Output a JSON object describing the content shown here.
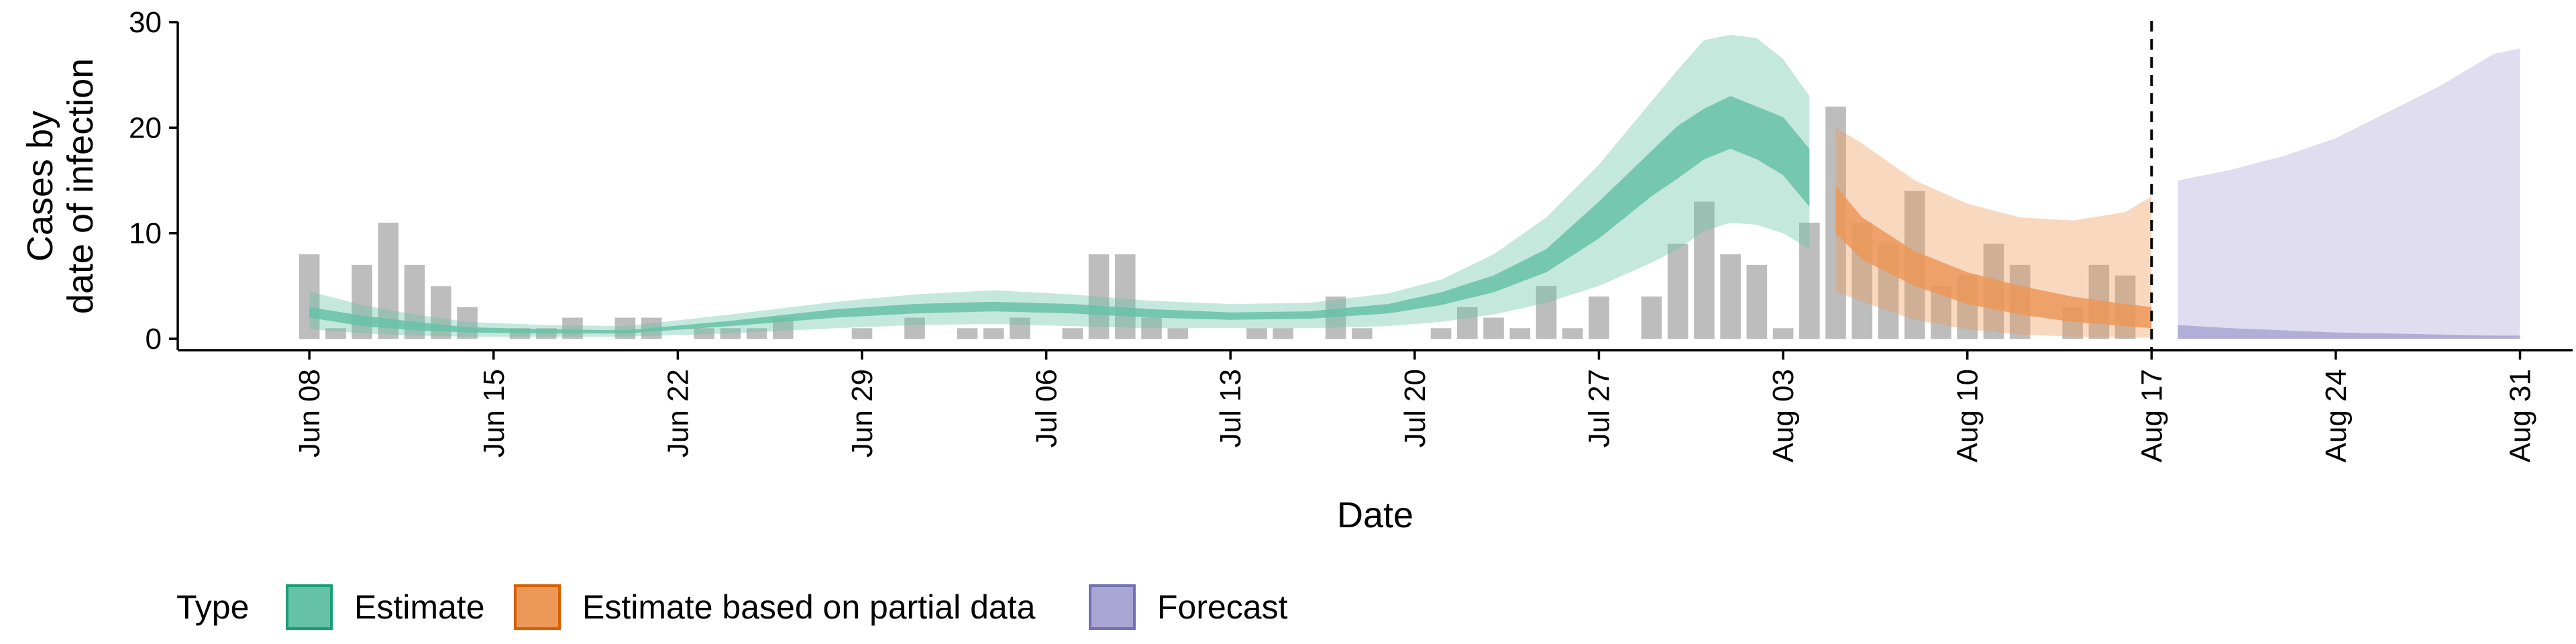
{
  "chart_data": {
    "type": "area",
    "xlabel": "Date",
    "ylabel": [
      "Cases by",
      "date of infection"
    ],
    "ylim": [
      0,
      30
    ],
    "y_ticks": [
      0,
      10,
      20,
      30
    ],
    "x_range": [
      "2020-06-03",
      "2020-09-02"
    ],
    "x_ticks": [
      "Jun 08",
      "Jun 15",
      "Jun 22",
      "Jun 29",
      "Jul 06",
      "Jul 13",
      "Jul 20",
      "Jul 27",
      "Aug 03",
      "Aug 10",
      "Aug 17",
      "Aug 24",
      "Aug 31"
    ],
    "x_tick_dates": [
      "2020-06-08",
      "2020-06-15",
      "2020-06-22",
      "2020-06-29",
      "2020-07-06",
      "2020-07-13",
      "2020-07-20",
      "2020-07-27",
      "2020-08-03",
      "2020-08-10",
      "2020-08-17",
      "2020-08-24",
      "2020-08-31"
    ],
    "forecast_start_line": "2020-08-17",
    "grid": false,
    "legend": {
      "title": "Type",
      "position": "bottom",
      "items": [
        {
          "label": "Estimate",
          "fill": "#66c2a5",
          "stroke": "#1b9e77"
        },
        {
          "label": "Estimate based on partial data",
          "fill": "#ec9858",
          "stroke": "#d95f02"
        },
        {
          "label": "Forecast",
          "fill": "#aaa6d4",
          "stroke": "#7570b3"
        }
      ]
    },
    "bar_color": "#bdbdbd",
    "reported_cases": {
      "dates": [
        "2020-06-08",
        "2020-06-09",
        "2020-06-10",
        "2020-06-11",
        "2020-06-12",
        "2020-06-13",
        "2020-06-14",
        "2020-06-15",
        "2020-06-16",
        "2020-06-17",
        "2020-06-18",
        "2020-06-19",
        "2020-06-20",
        "2020-06-21",
        "2020-06-22",
        "2020-06-23",
        "2020-06-24",
        "2020-06-25",
        "2020-06-26",
        "2020-06-27",
        "2020-06-28",
        "2020-06-29",
        "2020-06-30",
        "2020-07-01",
        "2020-07-02",
        "2020-07-03",
        "2020-07-04",
        "2020-07-05",
        "2020-07-06",
        "2020-07-07",
        "2020-07-08",
        "2020-07-09",
        "2020-07-10",
        "2020-07-11",
        "2020-07-12",
        "2020-07-13",
        "2020-07-14",
        "2020-07-15",
        "2020-07-16",
        "2020-07-17",
        "2020-07-18",
        "2020-07-19",
        "2020-07-20",
        "2020-07-21",
        "2020-07-22",
        "2020-07-23",
        "2020-07-24",
        "2020-07-25",
        "2020-07-26",
        "2020-07-27",
        "2020-07-28",
        "2020-07-29",
        "2020-07-30",
        "2020-07-31",
        "2020-08-01",
        "2020-08-02",
        "2020-08-03",
        "2020-08-04",
        "2020-08-05",
        "2020-08-06",
        "2020-08-07",
        "2020-08-08",
        "2020-08-09",
        "2020-08-10",
        "2020-08-11",
        "2020-08-12",
        "2020-08-13",
        "2020-08-14",
        "2020-08-15",
        "2020-08-16",
        "2020-08-17"
      ],
      "values": [
        8,
        1,
        7,
        11,
        7,
        5,
        3,
        0,
        1,
        1,
        2,
        0,
        2,
        2,
        0,
        1,
        1,
        1,
        2,
        0,
        0,
        1,
        0,
        2,
        0,
        1,
        1,
        2,
        0,
        1,
        8,
        8,
        2,
        1,
        0,
        0,
        1,
        1,
        0,
        4,
        1,
        0,
        0,
        1,
        3,
        2,
        1,
        5,
        1,
        4,
        0,
        4,
        9,
        13,
        8,
        7,
        1,
        11,
        22,
        11,
        9,
        14,
        5,
        6,
        9,
        7,
        0,
        3,
        7,
        6,
        0
      ]
    },
    "estimate": {
      "dates": [
        "2020-06-08",
        "2020-06-10",
        "2020-06-12",
        "2020-06-14",
        "2020-06-17",
        "2020-06-20",
        "2020-06-24",
        "2020-06-28",
        "2020-07-01",
        "2020-07-04",
        "2020-07-07",
        "2020-07-10",
        "2020-07-13",
        "2020-07-16",
        "2020-07-19",
        "2020-07-21",
        "2020-07-23",
        "2020-07-25",
        "2020-07-27",
        "2020-07-29",
        "2020-07-30",
        "2020-07-31",
        "2020-08-01",
        "2020-08-02",
        "2020-08-03",
        "2020-08-04"
      ],
      "lower_90": [
        0.9,
        0.5,
        0.3,
        0.2,
        0.2,
        0.2,
        0.5,
        1.0,
        1.3,
        1.4,
        1.2,
        1.0,
        1.0,
        1.0,
        1.2,
        1.6,
        2.3,
        3.4,
        5.0,
        7.2,
        8.5,
        10.2,
        11.0,
        10.8,
        10.0,
        8.5
      ],
      "upper_90": [
        4.5,
        3.2,
        2.3,
        1.6,
        1.3,
        1.2,
        2.3,
        3.5,
        4.2,
        4.6,
        4.2,
        3.6,
        3.3,
        3.4,
        4.3,
        5.6,
        8.0,
        11.5,
        16.5,
        22.5,
        25.5,
        28.3,
        28.8,
        28.5,
        26.5,
        23.0
      ],
      "lower_50": [
        2.0,
        1.2,
        0.8,
        0.6,
        0.5,
        0.5,
        1.2,
        2.0,
        2.4,
        2.6,
        2.4,
        2.0,
        1.8,
        1.9,
        2.4,
        3.2,
        4.4,
        6.3,
        9.5,
        13.5,
        15.2,
        17.0,
        18.0,
        17.0,
        15.5,
        12.5
      ],
      "upper_50": [
        3.0,
        2.2,
        1.6,
        1.1,
        0.9,
        0.8,
        1.7,
        2.8,
        3.3,
        3.5,
        3.3,
        2.8,
        2.5,
        2.6,
        3.3,
        4.4,
        6.0,
        8.5,
        13.0,
        17.8,
        20.2,
        21.8,
        23.0,
        22.0,
        21.0,
        18.0
      ]
    },
    "estimate_partial": {
      "dates": [
        "2020-08-05",
        "2020-08-06",
        "2020-08-08",
        "2020-08-10",
        "2020-08-12",
        "2020-08-14",
        "2020-08-16",
        "2020-08-17"
      ],
      "lower_90": [
        4.5,
        3.5,
        1.8,
        0.9,
        0.4,
        0.2,
        0.1,
        0.1
      ],
      "upper_90": [
        20.0,
        18.5,
        15.0,
        12.8,
        11.5,
        11.2,
        12.0,
        13.5
      ],
      "lower_50": [
        10.0,
        7.5,
        5.0,
        3.3,
        2.3,
        1.6,
        1.2,
        1.0
      ],
      "upper_50": [
        14.5,
        11.5,
        8.3,
        6.3,
        5.0,
        4.0,
        3.3,
        3.0
      ]
    },
    "forecast": {
      "dates": [
        "2020-08-18",
        "2020-08-20",
        "2020-08-22",
        "2020-08-24",
        "2020-08-26",
        "2020-08-28",
        "2020-08-30",
        "2020-08-31"
      ],
      "lower_90": [
        0,
        0,
        0,
        0,
        0,
        0,
        0,
        0
      ],
      "upper_90": [
        15.0,
        16.0,
        17.3,
        19.0,
        21.5,
        24.0,
        27.0,
        27.5
      ],
      "lower_50": [
        0,
        0,
        0,
        0,
        0,
        0,
        0,
        0
      ],
      "upper_50": [
        1.3,
        1.0,
        0.8,
        0.6,
        0.5,
        0.4,
        0.3,
        0.3
      ]
    }
  }
}
